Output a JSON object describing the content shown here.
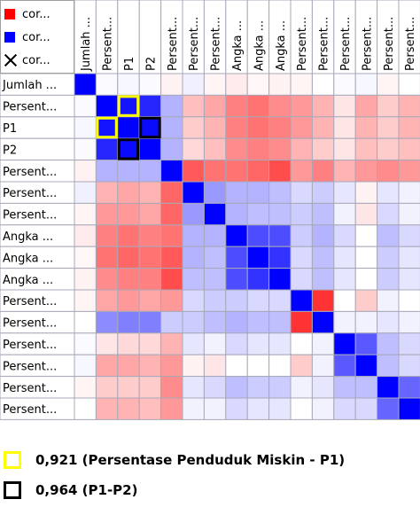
{
  "legend": {
    "items": [
      {
        "label": "cor...",
        "color": "#ff0000",
        "icon": "red-square-icon"
      },
      {
        "label": "cor...",
        "color": "#0000ff",
        "icon": "blue-square-icon"
      },
      {
        "label": "cor...",
        "icon": "cross-icon"
      }
    ]
  },
  "chart_data": {
    "type": "heatmap",
    "row_labels": [
      "Jumlah ...",
      "Persent...",
      "P1",
      "P2",
      "Persent...",
      "Persent...",
      "Persent...",
      "Angka ...",
      "Angka ...",
      "Angka ...",
      "Persent...",
      "Persent...",
      "Persent...",
      "Persent...",
      "Persent...",
      "Persent..."
    ],
    "col_labels": [
      "Jumlah ...",
      "Persent...",
      "P1",
      "P2",
      "Persent...",
      "Persent...",
      "Persent...",
      "Angka ...",
      "Angka ...",
      "Angka ...",
      "Persent...",
      "Persent...",
      "Persent...",
      "Persent...",
      "Persent...",
      "Persent..."
    ],
    "values": [
      [
        1.0,
        0.02,
        0.03,
        0.02,
        -0.05,
        0.06,
        -0.04,
        -0.08,
        -0.03,
        -0.05,
        -0.04,
        0.0,
        0.02,
        0.03,
        -0.04,
        0.0
      ],
      [
        0.02,
        1.0,
        0.92,
        0.85,
        0.3,
        -0.25,
        -0.35,
        -0.5,
        -0.55,
        -0.45,
        -0.4,
        -0.3,
        -0.1,
        -0.35,
        -0.2,
        -0.3
      ],
      [
        0.03,
        0.92,
        1.0,
        0.96,
        0.3,
        -0.2,
        -0.3,
        -0.5,
        -0.55,
        -0.5,
        -0.4,
        -0.3,
        -0.1,
        -0.3,
        -0.2,
        -0.3
      ],
      [
        0.02,
        0.85,
        0.96,
        1.0,
        0.3,
        -0.15,
        -0.25,
        -0.45,
        -0.5,
        -0.45,
        -0.3,
        -0.2,
        -0.1,
        -0.25,
        -0.2,
        -0.25
      ],
      [
        -0.05,
        0.3,
        0.3,
        0.3,
        1.0,
        -0.65,
        -0.55,
        -0.55,
        -0.6,
        -0.7,
        -0.4,
        -0.5,
        -0.3,
        -0.4,
        -0.45,
        -0.4
      ],
      [
        0.06,
        -0.3,
        -0.35,
        -0.3,
        -0.6,
        1.0,
        0.4,
        0.3,
        0.3,
        0.25,
        0.15,
        0.2,
        0.1,
        -0.05,
        0.1,
        0.05
      ],
      [
        -0.04,
        -0.4,
        -0.4,
        -0.35,
        -0.6,
        0.4,
        1.0,
        0.3,
        0.25,
        0.25,
        0.2,
        0.25,
        0.05,
        -0.1,
        0.15,
        0.05
      ],
      [
        -0.08,
        -0.5,
        -0.55,
        -0.5,
        -0.55,
        0.3,
        0.3,
        1.0,
        0.7,
        0.7,
        0.2,
        0.3,
        0.15,
        0.0,
        0.25,
        0.15
      ],
      [
        -0.03,
        -0.55,
        -0.6,
        -0.55,
        -0.65,
        0.3,
        0.25,
        0.7,
        1.0,
        0.8,
        0.15,
        0.25,
        0.1,
        0.0,
        0.2,
        0.1
      ],
      [
        -0.05,
        -0.45,
        -0.5,
        -0.5,
        -0.7,
        0.25,
        0.25,
        0.7,
        0.8,
        1.0,
        0.15,
        0.25,
        0.1,
        0.0,
        0.2,
        0.1
      ],
      [
        -0.04,
        -0.35,
        -0.4,
        -0.35,
        -0.4,
        0.15,
        0.2,
        0.2,
        0.15,
        0.15,
        1.0,
        -0.8,
        0.0,
        -0.2,
        0.05,
        0.0
      ],
      [
        0.0,
        0.45,
        0.5,
        0.5,
        0.2,
        0.2,
        0.25,
        0.3,
        0.25,
        0.25,
        -0.8,
        1.0,
        0.05,
        0.05,
        0.1,
        0.05
      ],
      [
        0.02,
        -0.1,
        -0.15,
        -0.15,
        -0.3,
        0.1,
        0.05,
        0.15,
        0.1,
        0.1,
        0.0,
        0.05,
        1.0,
        0.65,
        0.25,
        0.15
      ],
      [
        0.03,
        -0.35,
        -0.35,
        -0.3,
        -0.4,
        -0.05,
        -0.1,
        0.0,
        0.0,
        0.0,
        -0.2,
        0.05,
        0.65,
        1.0,
        0.25,
        0.15
      ],
      [
        -0.04,
        -0.2,
        -0.2,
        -0.2,
        -0.45,
        0.1,
        0.15,
        0.25,
        0.2,
        0.2,
        0.05,
        0.1,
        0.25,
        0.25,
        1.0,
        0.6
      ],
      [
        0.0,
        -0.3,
        -0.3,
        -0.25,
        -0.4,
        0.05,
        0.05,
        0.15,
        0.1,
        0.1,
        0.0,
        0.05,
        0.15,
        0.15,
        0.6,
        1.0
      ]
    ],
    "color_negative": "#ff0000",
    "color_positive": "#0000ff",
    "highlights": [
      {
        "row": 1,
        "col": 2,
        "value": "0,921",
        "border": "#ffff00"
      },
      {
        "row": 2,
        "col": 1,
        "value": "0,921",
        "border": "#ffff00"
      },
      {
        "row": 2,
        "col": 3,
        "value": "0,964",
        "border": "#000000"
      },
      {
        "row": 3,
        "col": 2,
        "value": "0,964",
        "border": "#000000"
      }
    ]
  },
  "annotations": [
    {
      "text": "0,921 (Persentase Penduduk Miskin - P1)",
      "border": "#ffff00"
    },
    {
      "text": "0,964 (P1-P2)",
      "border": "#000000"
    }
  ]
}
